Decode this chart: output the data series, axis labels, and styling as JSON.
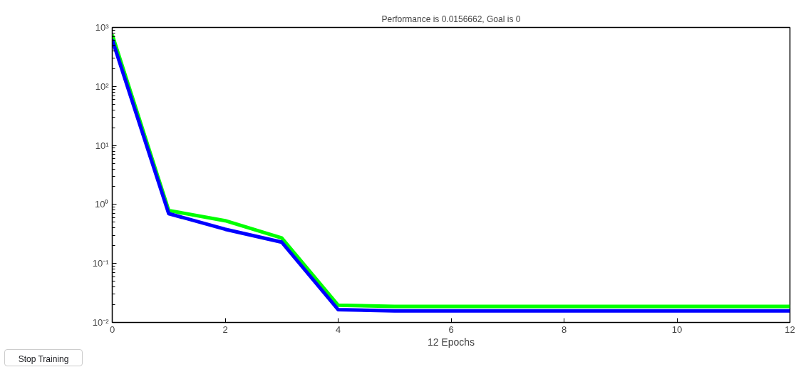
{
  "chart_data": {
    "type": "line",
    "title": "Performance is 0.0156662, Goal is 0",
    "xlabel": "12 Epochs",
    "x": [
      0,
      1,
      2,
      3,
      4,
      5,
      6,
      7,
      8,
      9,
      10,
      11,
      12
    ],
    "series": [
      {
        "color": "#00ff00",
        "values": [
          750,
          0.79,
          0.53,
          0.27,
          0.0196,
          0.0187,
          0.0187,
          0.0187,
          0.0187,
          0.0187,
          0.0187,
          0.0187,
          0.0187
        ]
      },
      {
        "color": "#0000ff",
        "values": [
          620,
          0.7,
          0.38,
          0.23,
          0.0165,
          0.0157,
          0.0157,
          0.0157,
          0.0157,
          0.0157,
          0.0157,
          0.0157,
          0.0157
        ]
      }
    ],
    "log": "y",
    "xlim": [
      0,
      12
    ],
    "xticks": [
      0,
      2,
      4,
      6,
      8,
      10,
      12
    ],
    "ylim": [
      0.01,
      1000
    ],
    "yticks": [
      {
        "value": 0.01,
        "label": "10⁻²"
      },
      {
        "value": 0.1,
        "label": "10⁻¹"
      },
      {
        "value": 1,
        "label": "10⁰"
      },
      {
        "value": 10,
        "label": "10¹"
      },
      {
        "value": 100,
        "label": "10²"
      },
      {
        "value": 1000,
        "label": "10³"
      }
    ],
    "grid": false,
    "marker": "none",
    "line_style": "solid",
    "annotations": [
      "Stop Training"
    ]
  }
}
